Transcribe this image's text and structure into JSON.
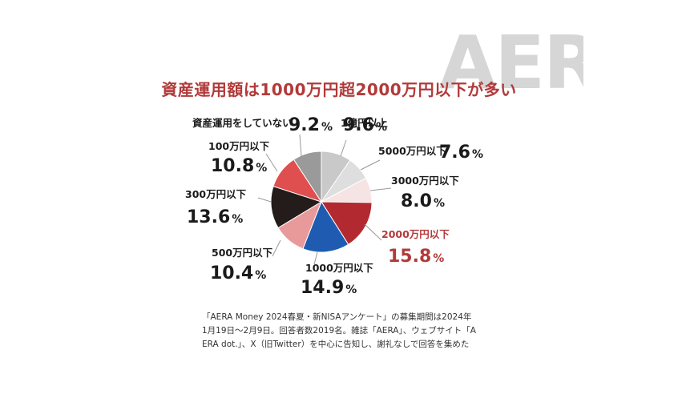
{
  "logo_text": "AERA",
  "title": "資産運用額は1000万円超2000万円以下が多い",
  "chart_data": {
    "type": "pie",
    "title": "資産運用額は1000万円超2000万円以下が多い",
    "unit": "%",
    "slices": [
      {
        "label": "1億円以上",
        "value": 9.6,
        "color": "#c9c9c9"
      },
      {
        "label": "5000万円以下",
        "value": 7.6,
        "color": "#dedede"
      },
      {
        "label": "3000万円以下",
        "value": 8.0,
        "color": "#f6e4e4"
      },
      {
        "label": "2000万円以下",
        "value": 15.8,
        "color": "#b22a30",
        "highlight": true
      },
      {
        "label": "1000万円以下",
        "value": 14.9,
        "color": "#1f5bb0"
      },
      {
        "label": "500万円以下",
        "value": 10.4,
        "color": "#e89a9a"
      },
      {
        "label": "300万円以下",
        "value": 13.6,
        "color": "#241c1a"
      },
      {
        "label": "100万円以下",
        "value": 10.8,
        "color": "#df4f4f"
      },
      {
        "label": "資産運用をしていない",
        "value": 9.2,
        "color": "#9a9a9a"
      }
    ]
  },
  "note_lines": [
    "「AERA Money 2024春夏・新NISAアンケート」の募集期間は2024年",
    "1月19日～2月9日。回答者数2019名。雑誌「AERA」、ウェブサイト「A",
    "ERA dot.」、X（旧Twitter）を中心に告知し、謝礼なしで回答を集めた"
  ]
}
